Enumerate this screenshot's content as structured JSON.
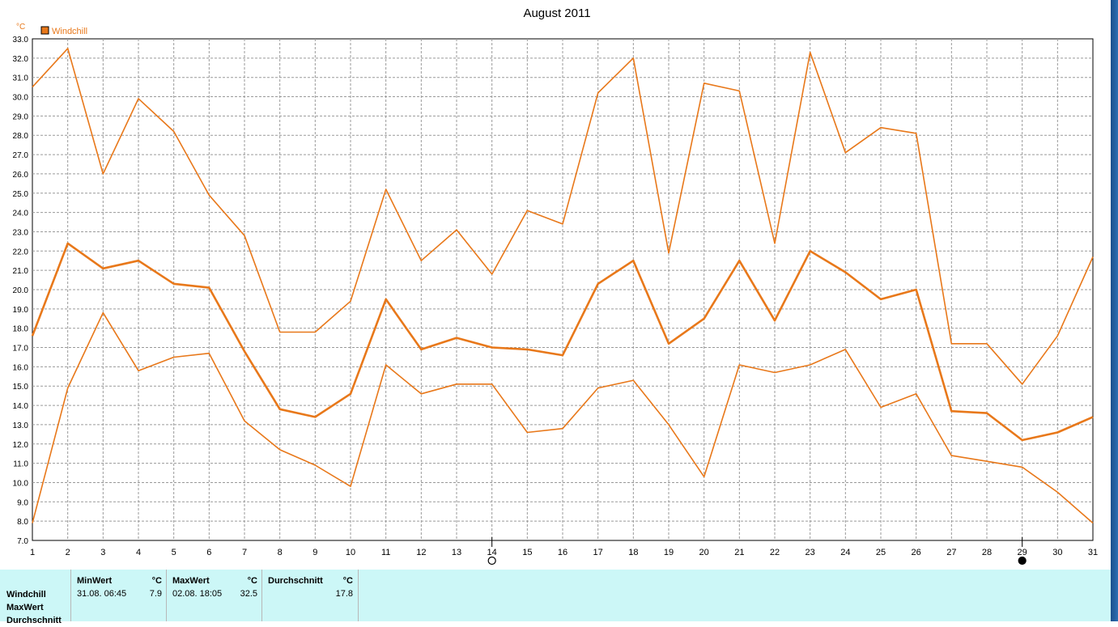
{
  "chart_data": {
    "type": "line",
    "title": "August 2011",
    "ylabel": "°C",
    "legend": {
      "entries": [
        "Windchill"
      ],
      "placement": "top-left",
      "color": "#e8781a"
    },
    "x": [
      1,
      2,
      3,
      4,
      5,
      6,
      7,
      8,
      9,
      10,
      11,
      12,
      13,
      14,
      15,
      16,
      17,
      18,
      19,
      20,
      21,
      22,
      23,
      24,
      25,
      26,
      27,
      28,
      29,
      30,
      31
    ],
    "ylim": [
      7.0,
      33.0
    ],
    "ytick_step": 1.0,
    "grid": true,
    "series": [
      {
        "role": "max",
        "values": [
          30.5,
          32.5,
          26.0,
          29.9,
          28.2,
          24.9,
          22.8,
          17.8,
          17.8,
          19.4,
          25.2,
          21.5,
          23.1,
          20.8,
          24.1,
          23.4,
          30.2,
          32.0,
          21.9,
          30.7,
          30.3,
          22.4,
          32.3,
          27.1,
          28.4,
          28.1,
          17.2,
          17.2,
          15.1,
          17.6,
          21.7
        ]
      },
      {
        "role": "avg",
        "values": [
          17.6,
          22.4,
          21.1,
          21.5,
          20.3,
          20.1,
          16.8,
          13.8,
          13.4,
          14.6,
          19.5,
          16.9,
          17.5,
          17.0,
          16.9,
          16.6,
          20.3,
          21.5,
          17.2,
          18.5,
          21.5,
          18.4,
          22.0,
          20.9,
          19.5,
          20.0,
          13.7,
          13.6,
          12.2,
          12.6,
          13.4
        ]
      },
      {
        "role": "min",
        "values": [
          7.9,
          14.9,
          18.8,
          15.8,
          16.5,
          16.7,
          13.2,
          11.7,
          10.9,
          9.8,
          16.1,
          14.6,
          15.1,
          15.1,
          12.6,
          12.8,
          14.9,
          15.3,
          13.0,
          10.3,
          16.1,
          15.7,
          16.1,
          16.9,
          13.9,
          14.6,
          11.4,
          11.1,
          10.8,
          9.5,
          7.9
        ]
      }
    ],
    "moon_markers": [
      {
        "x": 14,
        "phase": "full-moon"
      },
      {
        "x": 29,
        "phase": "new-moon"
      }
    ],
    "line_color": "#e8781a"
  },
  "stats_panel": {
    "row_labels": [
      "Windchill",
      "MaxWert",
      "Durchschnitt"
    ],
    "min": {
      "header": "MinWert",
      "unit": "°C",
      "date": "31.08.  06:45",
      "value": "7.9"
    },
    "max": {
      "header": "MaxWert",
      "unit": "°C",
      "date": "02.08.  18:05",
      "value": "32.5"
    },
    "avg": {
      "header": "Durchschnitt",
      "unit": "°C",
      "value": "17.8"
    },
    "background": "#ccf7f7"
  }
}
